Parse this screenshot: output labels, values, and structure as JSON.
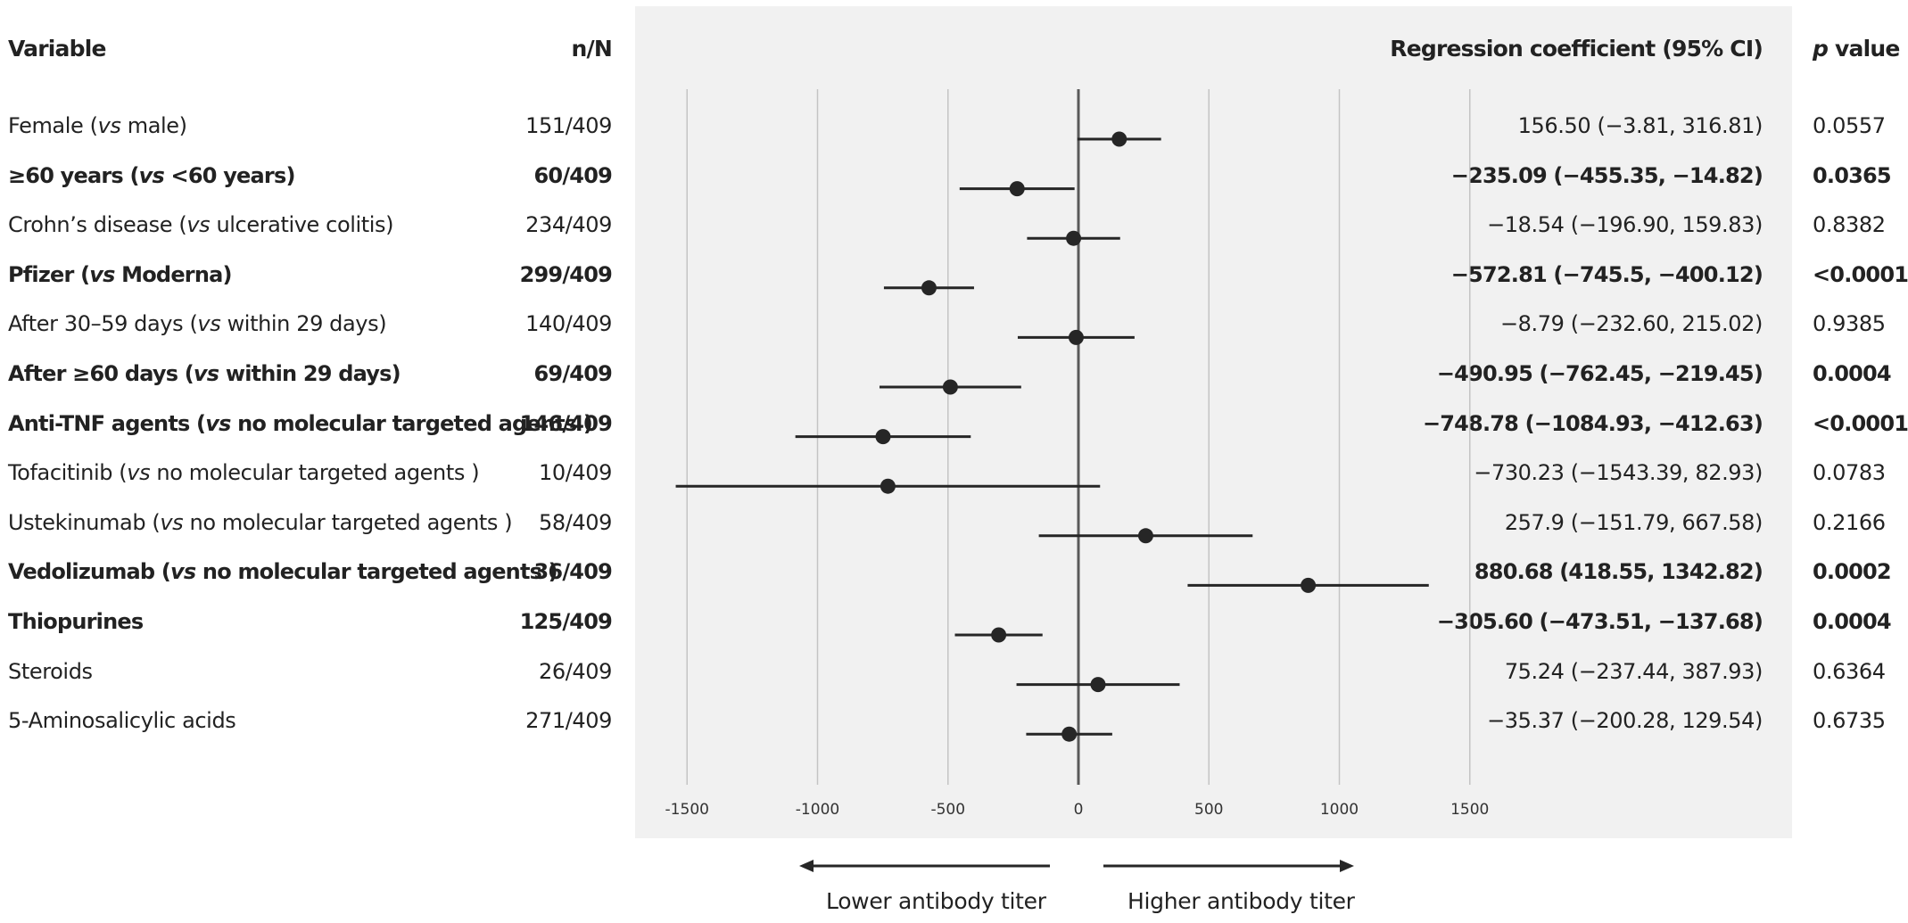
{
  "headers": {
    "variable": "Variable",
    "nN": "n/N",
    "coef": "Regression coefficient (95% CI)",
    "p_italic": "p",
    "p_rest": " value"
  },
  "rows": [
    {
      "label": "Female (",
      "vs": "vs",
      "rest": " male)",
      "nN": "151/409",
      "coef": "156.50 (−3.81, 316.81)",
      "p": "0.0557",
      "bold": false
    },
    {
      "label": "≥60 years (",
      "vs": "vs",
      "rest": " <60 years)",
      "nN": "60/409",
      "coef": "−235.09 (−455.35, −14.82)",
      "p": "0.0365",
      "bold": true
    },
    {
      "label": "Crohn’s disease (",
      "vs": "vs",
      "rest": " ulcerative colitis)",
      "nN": "234/409",
      "coef": "−18.54 (−196.90, 159.83)",
      "p": "0.8382",
      "bold": false
    },
    {
      "label": "Pfizer (",
      "vs": "vs",
      "rest": " Moderna)",
      "nN": "299/409",
      "coef": "−572.81 (−745.5, −400.12)",
      "p": "<0.0001",
      "bold": true
    },
    {
      "label": "After 30–59 days (",
      "vs": "vs",
      "rest": " within 29 days)",
      "nN": "140/409",
      "coef": "−8.79 (−232.60, 215.02)",
      "p": "0.9385",
      "bold": false
    },
    {
      "label": "After ≥60 days (",
      "vs": "vs",
      "rest": " within 29 days)",
      "nN": "69/409",
      "coef": "−490.95 (−762.45, −219.45)",
      "p": "0.0004",
      "bold": true
    },
    {
      "label": "Anti-TNF agents (",
      "vs": "vs",
      "rest": " no molecular targeted agents )",
      "nN": "146/409",
      "coef": "−748.78 (−1084.93, −412.63)",
      "p": "<0.0001",
      "bold": true
    },
    {
      "label": "Tofacitinib (",
      "vs": "vs",
      "rest": " no molecular targeted agents )",
      "nN": "10/409",
      "coef": "−730.23 (−1543.39, 82.93)",
      "p": "0.0783",
      "bold": false
    },
    {
      "label": "Ustekinumab (",
      "vs": "vs",
      "rest": " no molecular targeted agents )",
      "nN": "58/409",
      "coef": "257.9 (−151.79, 667.58)",
      "p": "0.2166",
      "bold": false
    },
    {
      "label": "Vedolizumab (",
      "vs": "vs",
      "rest": " no molecular targeted agents )",
      "nN": "36/409",
      "coef": "880.68 (418.55, 1342.82)",
      "p": "0.0002",
      "bold": true
    },
    {
      "label": "Thiopurines",
      "vs": "",
      "rest": "",
      "nN": "125/409",
      "coef": "−305.60 (−473.51, −137.68)",
      "p": "0.0004",
      "bold": true
    },
    {
      "label": "Steroids",
      "vs": "",
      "rest": "",
      "nN": "26/409",
      "coef": "75.24 (−237.44, 387.93)",
      "p": "0.6364",
      "bold": false
    },
    {
      "label": "5-Aminosalicylic acids",
      "vs": "",
      "rest": "",
      "nN": "271/409",
      "coef": "−35.37 (−200.28, 129.54)",
      "p": "0.6735",
      "bold": false
    }
  ],
  "arrows": {
    "left": "Lower antibody titer",
    "right": "Higher antibody titer"
  },
  "chart_data": {
    "type": "forest",
    "xlim": [
      -1500,
      1500
    ],
    "xticks": [
      -1500,
      -1000,
      -500,
      0,
      500,
      1000,
      1500
    ],
    "tick_labels": [
      "-1500",
      "-1000",
      "-500",
      "0",
      "500",
      "1000",
      "1500"
    ],
    "grid": true,
    "reference_line": 0,
    "estimates": [
      156.5,
      -235.09,
      -18.54,
      -572.81,
      -8.79,
      -490.95,
      -748.78,
      -730.23,
      257.9,
      880.68,
      -305.6,
      75.24,
      -35.37
    ],
    "lower": [
      -3.81,
      -455.35,
      -196.9,
      -745.5,
      -232.6,
      -762.45,
      -1084.93,
      -1543.39,
      -151.79,
      418.55,
      -473.51,
      -237.44,
      -200.28
    ],
    "upper": [
      316.81,
      -14.82,
      159.83,
      -400.12,
      215.02,
      -219.45,
      -412.63,
      82.93,
      667.58,
      1342.82,
      -137.68,
      387.93,
      129.54
    ]
  },
  "colors": {
    "panel": "#f1f1f1",
    "grid": "#c4c4c4",
    "marks": "#262626",
    "text": "#222222"
  }
}
